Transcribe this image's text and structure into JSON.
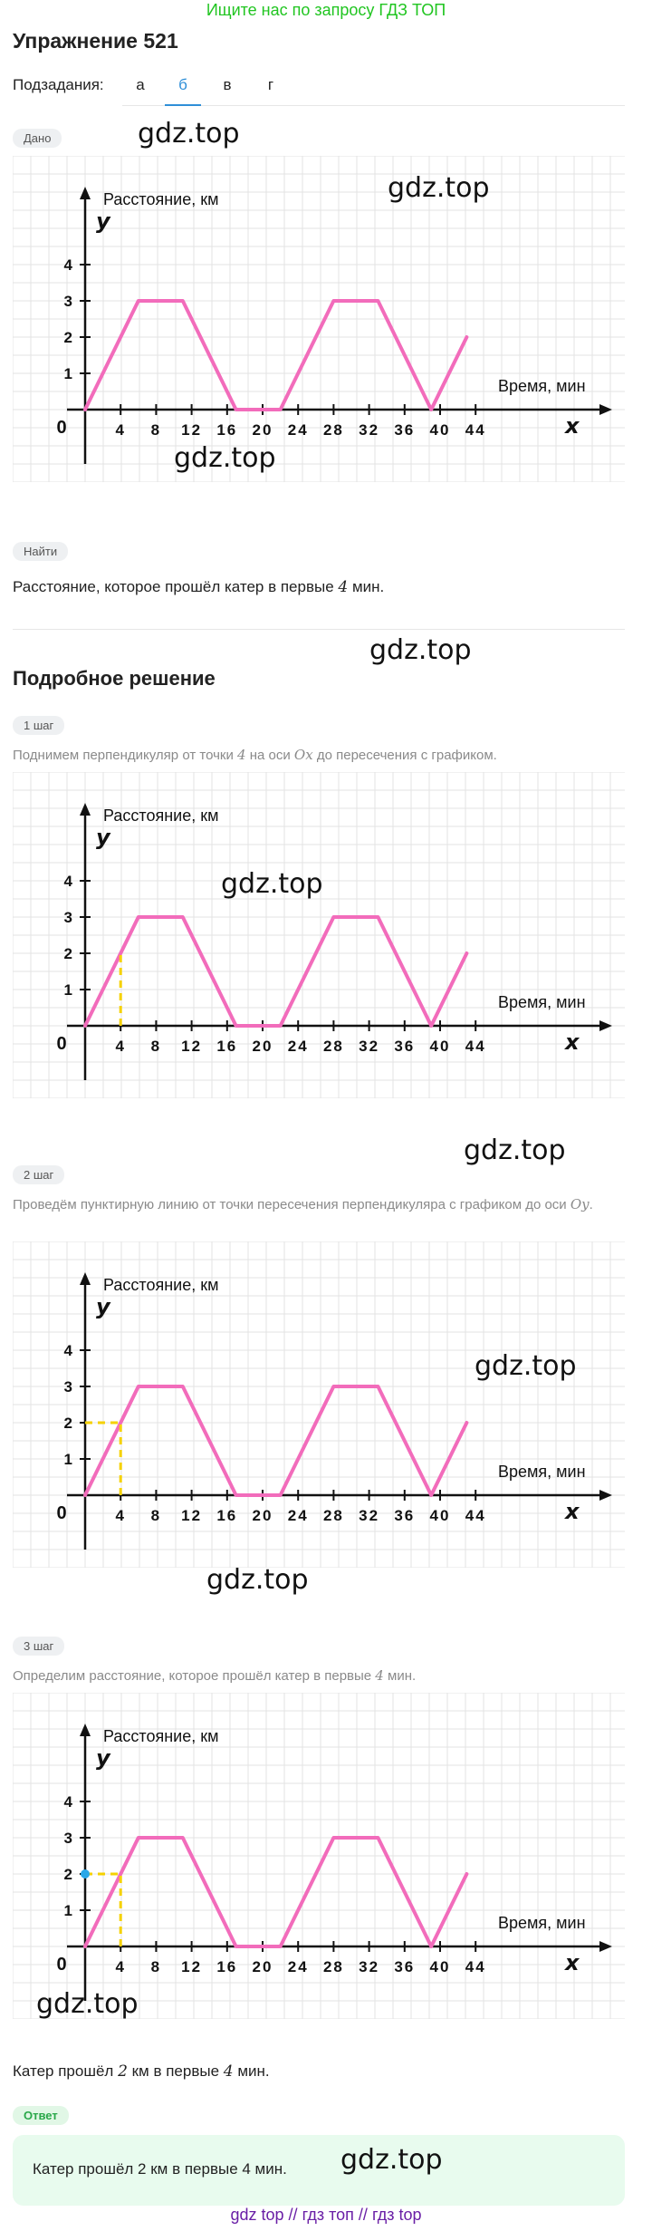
{
  "banner": "Ищите нас по запросу ГДЗ ТОП",
  "title": "Упражнение 521",
  "subtasks": {
    "label": "Подзадания:",
    "tabs": [
      "а",
      "б",
      "в",
      "г"
    ],
    "active": "б"
  },
  "given": {
    "badge": "Дано"
  },
  "find": {
    "badge": "Найти",
    "text_before": "Расстояние, которое прошёл катер в первые ",
    "number": "4",
    "text_after": " мин."
  },
  "solution": {
    "title": "Подробное решение",
    "steps": [
      {
        "badge": "1 шаг",
        "text_before": "Поднимем перпендикуляр от точки ",
        "num": "4",
        "text_mid": " на оси ",
        "axis": "Ox",
        "text_after": " до пересечения с графиком."
      },
      {
        "badge": "2 шаг",
        "text_before": "Проведём пунктирную линию от точки пересечения перпендикуляра с графиком до оси ",
        "axis": "Oy",
        "text_after": "."
      },
      {
        "badge": "3 шаг",
        "text_before": "Определим расстояние, которое прошёл катер в первые ",
        "num": "4",
        "text_after": " мин."
      }
    ],
    "conclusion": {
      "text_before": "Катер прошёл ",
      "num1": "2",
      "text_mid": " км в первые ",
      "num2": "4",
      "text_after": " мин."
    }
  },
  "answer": {
    "badge": "Ответ",
    "text": "Катер прошёл 2 км в первые 4 мин."
  },
  "watermark": "gdz.top",
  "footer": {
    "links": [
      "gdz top",
      "гдз топ",
      "гдз top"
    ],
    "separator": "//"
  },
  "chart_data": {
    "type": "line",
    "ylabel": "Расстояние, км",
    "xlabel": "Время, мин",
    "x_axis_letter": "x",
    "y_axis_letter": "y",
    "origin_label": "0",
    "x_ticks": [
      4,
      8,
      12,
      16,
      20,
      24,
      28,
      32,
      36,
      40,
      44
    ],
    "y_ticks": [
      1,
      2,
      3,
      4
    ],
    "series": [
      {
        "x": [
          0,
          6,
          11,
          17,
          22,
          28,
          33,
          39,
          43
        ],
        "y": [
          0,
          3,
          3,
          0,
          0,
          3,
          3,
          0,
          2
        ]
      }
    ],
    "line_color": "#f26cbb",
    "grid": true,
    "helper_x": 4,
    "helper_y": 2
  }
}
